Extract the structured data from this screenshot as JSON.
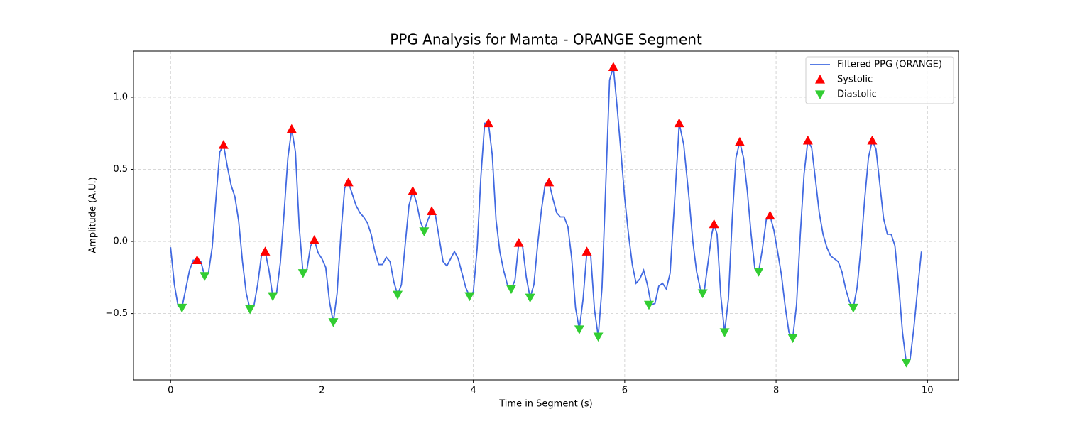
{
  "chart_data": {
    "type": "line",
    "title": "PPG Analysis for Mamta - ORANGE Segment",
    "x_label": "Time in Segment (s)",
    "y_label": "Amplitude (A.U.)",
    "xlim": [
      -0.49,
      10.41
    ],
    "ylim": [
      -0.96,
      1.32
    ],
    "xticks": [
      0,
      2,
      4,
      6,
      8,
      10
    ],
    "yticks": [
      {
        "value": -0.5,
        "label": "−0.5"
      },
      {
        "value": 0,
        "label": "0.0"
      },
      0.5,
      {
        "value": 1,
        "label": "1.0"
      }
    ],
    "grid": true,
    "legend": "upper right",
    "series": [
      {
        "name": "Filtered PPG (ORANGE)",
        "color": "#4169e1",
        "style": "line",
        "x": [
          0,
          0.05,
          0.1,
          0.15,
          0.2,
          0.25,
          0.3,
          0.35,
          0.4,
          0.45,
          0.5,
          0.55,
          0.6,
          0.65,
          0.7,
          0.75,
          0.8,
          0.85,
          0.9,
          0.95,
          1.0,
          1.05,
          1.1,
          1.15,
          1.2,
          1.25,
          1.3,
          1.35,
          1.4,
          1.45,
          1.5,
          1.55,
          1.6,
          1.65,
          1.7,
          1.75,
          1.8,
          1.85,
          1.9,
          1.95,
          2.0,
          2.05,
          2.1,
          2.15,
          2.2,
          2.25,
          2.3,
          2.35,
          2.4,
          2.45,
          2.5,
          2.55,
          2.6,
          2.65,
          2.7,
          2.75,
          2.8,
          2.85,
          2.9,
          2.95,
          3.0,
          3.05,
          3.1,
          3.15,
          3.2,
          3.25,
          3.3,
          3.35,
          3.4,
          3.45,
          3.5,
          3.55,
          3.6,
          3.65,
          3.7,
          3.75,
          3.8,
          3.85,
          3.9,
          3.95,
          4.0,
          4.05,
          4.1,
          4.15,
          4.2,
          4.25,
          4.3,
          4.35,
          4.4,
          4.45,
          4.5,
          4.55,
          4.6,
          4.65,
          4.7,
          4.75,
          4.8,
          4.85,
          4.9,
          4.95,
          5.0,
          5.05,
          5.1,
          5.15,
          5.2,
          5.25,
          5.3,
          5.35,
          5.4,
          5.45,
          5.5,
          5.55,
          5.6,
          5.65,
          5.7,
          5.75,
          5.8,
          5.85,
          5.9,
          5.95,
          6.0,
          6.05,
          6.1,
          6.15,
          6.2,
          6.25,
          6.3,
          6.35,
          6.4,
          6.45,
          6.5,
          6.55,
          6.6,
          6.65,
          6.7,
          6.72,
          6.78,
          6.85,
          6.9,
          6.95,
          7.0,
          7.05,
          7.1,
          7.15,
          7.18,
          7.22,
          7.27,
          7.32,
          7.37,
          7.42,
          7.47,
          7.52,
          7.57,
          7.62,
          7.67,
          7.72,
          7.77,
          7.82,
          7.87,
          7.92,
          7.97,
          8.02,
          8.07,
          8.12,
          8.17,
          8.22,
          8.27,
          8.32,
          8.37,
          8.42,
          8.47,
          8.52,
          8.57,
          8.62,
          8.67,
          8.72,
          8.77,
          8.82,
          8.87,
          8.92,
          8.97,
          9.02,
          9.07,
          9.12,
          9.17,
          9.22,
          9.27,
          9.32,
          9.37,
          9.42,
          9.47,
          9.52,
          9.57,
          9.62,
          9.67,
          9.72,
          9.77,
          9.82,
          9.87,
          9.92
        ],
        "values": [
          -0.04,
          -0.3,
          -0.45,
          -0.46,
          -0.33,
          -0.2,
          -0.13,
          -0.13,
          -0.14,
          -0.24,
          -0.22,
          -0.04,
          0.3,
          0.62,
          0.67,
          0.52,
          0.39,
          0.31,
          0.14,
          -0.14,
          -0.36,
          -0.47,
          -0.45,
          -0.3,
          -0.1,
          -0.07,
          -0.2,
          -0.38,
          -0.36,
          -0.15,
          0.2,
          0.58,
          0.78,
          0.62,
          0.1,
          -0.22,
          -0.2,
          -0.03,
          0.01,
          -0.08,
          -0.12,
          -0.18,
          -0.42,
          -0.56,
          -0.36,
          0.05,
          0.37,
          0.41,
          0.33,
          0.25,
          0.2,
          0.17,
          0.13,
          0.05,
          -0.07,
          -0.16,
          -0.16,
          -0.11,
          -0.14,
          -0.28,
          -0.37,
          -0.3,
          -0.02,
          0.25,
          0.35,
          0.27,
          0.14,
          0.07,
          0.15,
          0.21,
          0.18,
          0.02,
          -0.14,
          -0.17,
          -0.12,
          -0.07,
          -0.12,
          -0.22,
          -0.32,
          -0.38,
          -0.35,
          -0.05,
          0.45,
          0.82,
          0.82,
          0.6,
          0.15,
          -0.07,
          -0.2,
          -0.3,
          -0.33,
          -0.27,
          -0.01,
          -0.03,
          -0.25,
          -0.39,
          -0.3,
          -0.02,
          0.22,
          0.4,
          0.41,
          0.3,
          0.2,
          0.17,
          0.17,
          0.1,
          -0.12,
          -0.46,
          -0.61,
          -0.4,
          -0.07,
          -0.09,
          -0.47,
          -0.66,
          -0.32,
          0.4,
          1.12,
          1.21,
          0.93,
          0.62,
          0.3,
          0.05,
          -0.16,
          -0.29,
          -0.26,
          -0.2,
          -0.3,
          -0.44,
          -0.43,
          -0.31,
          -0.29,
          -0.33,
          -0.22,
          0.2,
          0.63,
          0.82,
          0.67,
          0.3,
          0.0,
          -0.21,
          -0.33,
          -0.35,
          -0.15,
          0.05,
          0.12,
          0.05,
          -0.38,
          -0.63,
          -0.4,
          0.15,
          0.58,
          0.69,
          0.58,
          0.35,
          0.05,
          -0.19,
          -0.21,
          -0.05,
          0.15,
          0.18,
          0.08,
          -0.07,
          -0.23,
          -0.45,
          -0.63,
          -0.67,
          -0.44,
          0.05,
          0.47,
          0.7,
          0.65,
          0.43,
          0.2,
          0.05,
          -0.04,
          -0.1,
          -0.12,
          -0.14,
          -0.21,
          -0.33,
          -0.42,
          -0.46,
          -0.32,
          -0.05,
          0.29,
          0.58,
          0.7,
          0.64,
          0.4,
          0.16,
          0.05,
          0.05,
          -0.03,
          -0.3,
          -0.63,
          -0.84,
          -0.82,
          -0.6,
          -0.33,
          -0.07
        ]
      },
      {
        "name": "Systolic",
        "color": "#ff0000",
        "style": "triangle-up",
        "x": [
          0.35,
          0.7,
          1.25,
          1.6,
          1.9,
          2.35,
          3.2,
          3.45,
          4.2,
          4.6,
          5.0,
          5.5,
          5.85,
          6.72,
          7.18,
          7.52,
          7.92,
          8.42,
          9.27
        ],
        "values": [
          -0.13,
          0.67,
          -0.07,
          0.78,
          0.01,
          0.41,
          0.35,
          0.21,
          0.82,
          -0.01,
          0.41,
          -0.07,
          1.21,
          0.82,
          0.12,
          0.69,
          0.18,
          0.7,
          0.7
        ]
      },
      {
        "name": "Diastolic",
        "color": "#32cd32",
        "style": "triangle-down",
        "x": [
          0.15,
          0.45,
          1.05,
          1.35,
          1.75,
          2.15,
          3.0,
          3.35,
          3.95,
          4.5,
          4.75,
          5.4,
          5.65,
          6.32,
          7.03,
          7.32,
          7.77,
          8.22,
          9.02,
          9.72
        ],
        "values": [
          -0.46,
          -0.24,
          -0.47,
          -0.38,
          -0.22,
          -0.56,
          -0.37,
          0.07,
          -0.38,
          -0.33,
          -0.39,
          -0.61,
          -0.66,
          -0.44,
          -0.36,
          -0.63,
          -0.21,
          -0.67,
          -0.46,
          -0.84
        ]
      }
    ]
  }
}
